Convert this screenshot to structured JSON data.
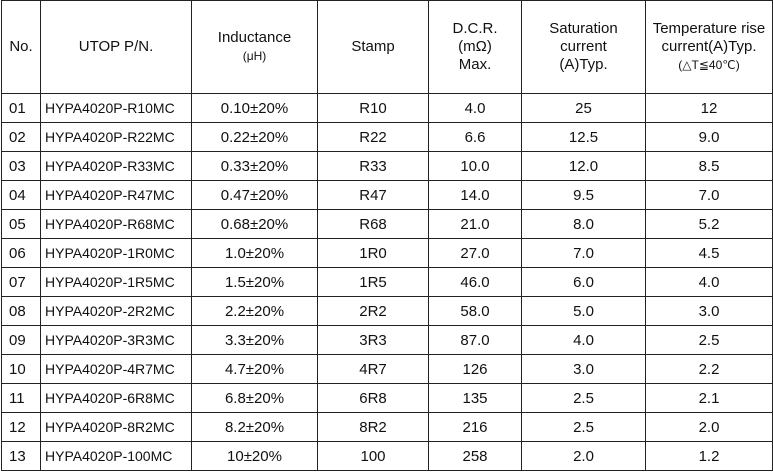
{
  "headers": {
    "no": "No.",
    "pn": "UTOP P/N.",
    "inductance": "Inductance",
    "inductance_unit": "(μH)",
    "stamp": "Stamp",
    "dcr_line1": "D.C.R.",
    "dcr_line2": "(mΩ)",
    "dcr_line3": "Max.",
    "sat_line1": "Saturation",
    "sat_line2": "current",
    "sat_line3": "(A)Typ.",
    "temp_line1": "Temperature rise",
    "temp_line2": "current(A)Typ.",
    "temp_line3": "(△T≦40℃)"
  },
  "rows": [
    {
      "no": "01",
      "pn": "HYPA4020P-R10MC",
      "inductance": "0.10±20%",
      "stamp": "R10",
      "dcr": "4.0",
      "sat": "25",
      "temp": "12"
    },
    {
      "no": "02",
      "pn": "HYPA4020P-R22MC",
      "inductance": "0.22±20%",
      "stamp": "R22",
      "dcr": "6.6",
      "sat": "12.5",
      "temp": "9.0"
    },
    {
      "no": "03",
      "pn": "HYPA4020P-R33MC",
      "inductance": "0.33±20%",
      "stamp": "R33",
      "dcr": "10.0",
      "sat": "12.0",
      "temp": "8.5"
    },
    {
      "no": "04",
      "pn": "HYPA4020P-R47MC",
      "inductance": "0.47±20%",
      "stamp": "R47",
      "dcr": "14.0",
      "sat": "9.5",
      "temp": "7.0"
    },
    {
      "no": "05",
      "pn": "HYPA4020P-R68MC",
      "inductance": "0.68±20%",
      "stamp": "R68",
      "dcr": "21.0",
      "sat": "8.0",
      "temp": "5.2"
    },
    {
      "no": "06",
      "pn": "HYPA4020P-1R0MC",
      "inductance": "1.0±20%",
      "stamp": "1R0",
      "dcr": "27.0",
      "sat": "7.0",
      "temp": "4.5"
    },
    {
      "no": "07",
      "pn": "HYPA4020P-1R5MC",
      "inductance": "1.5±20%",
      "stamp": "1R5",
      "dcr": "46.0",
      "sat": "6.0",
      "temp": "4.0"
    },
    {
      "no": "08",
      "pn": "HYPA4020P-2R2MC",
      "inductance": "2.2±20%",
      "stamp": "2R2",
      "dcr": "58.0",
      "sat": "5.0",
      "temp": "3.0"
    },
    {
      "no": "09",
      "pn": "HYPA4020P-3R3MC",
      "inductance": "3.3±20%",
      "stamp": "3R3",
      "dcr": "87.0",
      "sat": "4.0",
      "temp": "2.5"
    },
    {
      "no": "10",
      "pn": "HYPA4020P-4R7MC",
      "inductance": "4.7±20%",
      "stamp": "4R7",
      "dcr": "126",
      "sat": "3.0",
      "temp": "2.2"
    },
    {
      "no": "11",
      "pn": "HYPA4020P-6R8MC",
      "inductance": "6.8±20%",
      "stamp": "6R8",
      "dcr": "135",
      "sat": "2.5",
      "temp": "2.1"
    },
    {
      "no": "12",
      "pn": "HYPA4020P-8R2MC",
      "inductance": "8.2±20%",
      "stamp": "8R2",
      "dcr": "216",
      "sat": "2.5",
      "temp": "2.0"
    },
    {
      "no": "13",
      "pn": "HYPA4020P-100MC",
      "inductance": "10±20%",
      "stamp": "100",
      "dcr": "258",
      "sat": "2.0",
      "temp": "1.2"
    }
  ]
}
